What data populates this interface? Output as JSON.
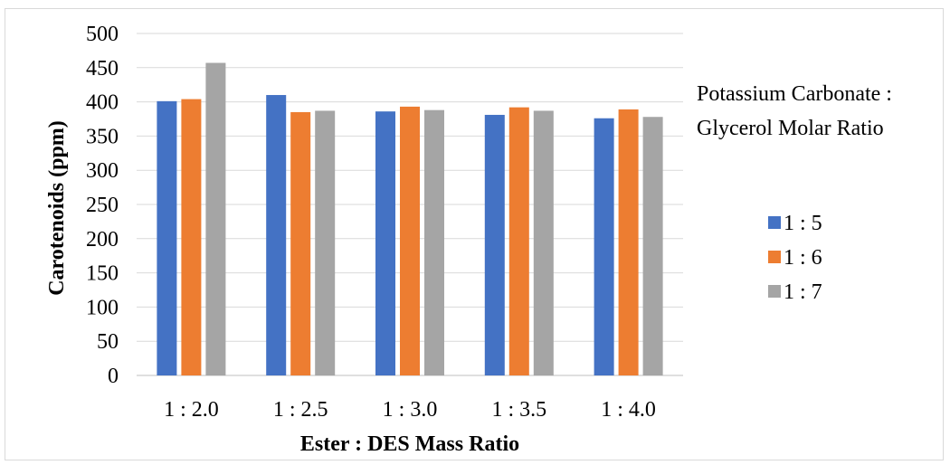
{
  "chart_data": {
    "type": "bar",
    "xlabel": "Ester : DES Mass Ratio",
    "ylabel": "Carotenoids (ppm)",
    "categories": [
      "1 : 2.0",
      "1 : 2.5",
      "1 : 3.0",
      "1 : 3.5",
      "1 : 4.0"
    ],
    "ylim": [
      0,
      500
    ],
    "yticks": [
      0,
      50,
      100,
      150,
      200,
      250,
      300,
      350,
      400,
      450,
      500
    ],
    "grid": true,
    "legend": {
      "title_lines": [
        "Potassium Carbonate :",
        "Glycerol Molar Ratio"
      ],
      "placement": "right"
    },
    "series": [
      {
        "name": "1 : 5",
        "color": "#4472c4",
        "values": [
          401,
          410,
          386,
          381,
          376
        ]
      },
      {
        "name": "1 : 6",
        "color": "#ed7d31",
        "values": [
          404,
          385,
          393,
          392,
          389
        ]
      },
      {
        "name": "1 : 7",
        "color": "#a5a5a5",
        "values": [
          457,
          387,
          388,
          387,
          378
        ]
      }
    ]
  }
}
